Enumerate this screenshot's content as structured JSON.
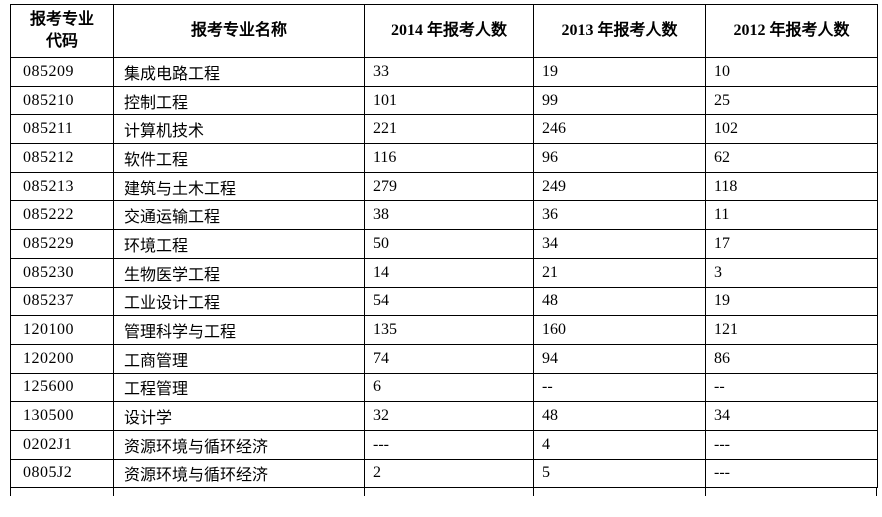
{
  "table": {
    "headers": {
      "col_code_line1": "报考专业",
      "col_code_line2": "代码",
      "col_name": "报考专业名称",
      "col_2014": "2014 年报考人数",
      "col_2013": "2013 年报考人数",
      "col_2012": "2012 年报考人数"
    },
    "rows": [
      {
        "code": "085209",
        "name": "集成电路工程",
        "y2014": "33",
        "y2013": "19",
        "y2012": "10"
      },
      {
        "code": "085210",
        "name": "控制工程",
        "y2014": "101",
        "y2013": "99",
        "y2012": "25"
      },
      {
        "code": "085211",
        "name": "计算机技术",
        "y2014": "221",
        "y2013": "246",
        "y2012": "102"
      },
      {
        "code": "085212",
        "name": "软件工程",
        "y2014": "116",
        "y2013": "96",
        "y2012": "62"
      },
      {
        "code": "085213",
        "name": "建筑与土木工程",
        "y2014": "279",
        "y2013": "249",
        "y2012": "118"
      },
      {
        "code": "085222",
        "name": "交通运输工程",
        "y2014": "38",
        "y2013": "36",
        "y2012": "11"
      },
      {
        "code": "085229",
        "name": "环境工程",
        "y2014": "50",
        "y2013": "34",
        "y2012": "17"
      },
      {
        "code": "085230",
        "name": "生物医学工程",
        "y2014": "14",
        "y2013": "21",
        "y2012": "3"
      },
      {
        "code": "085237",
        "name": "工业设计工程",
        "y2014": "54",
        "y2013": "48",
        "y2012": "19"
      },
      {
        "code": "120100",
        "name": "管理科学与工程",
        "y2014": "135",
        "y2013": "160",
        "y2012": "121"
      },
      {
        "code": "120200",
        "name": "工商管理",
        "y2014": "74",
        "y2013": "94",
        "y2012": "86"
      },
      {
        "code": "125600",
        "name": "工程管理",
        "y2014": "6",
        "y2013": "--",
        "y2012": "--"
      },
      {
        "code": "130500",
        "name": "设计学",
        "y2014": "32",
        "y2013": "48",
        "y2012": "34"
      },
      {
        "code": "0202J1",
        "name": "资源环境与循环经济",
        "y2014": "---",
        "y2013": "4",
        "y2012": "---"
      },
      {
        "code": "0805J2",
        "name": "资源环境与循环经济",
        "y2014": "2",
        "y2013": "5",
        "y2012": "---"
      }
    ]
  }
}
